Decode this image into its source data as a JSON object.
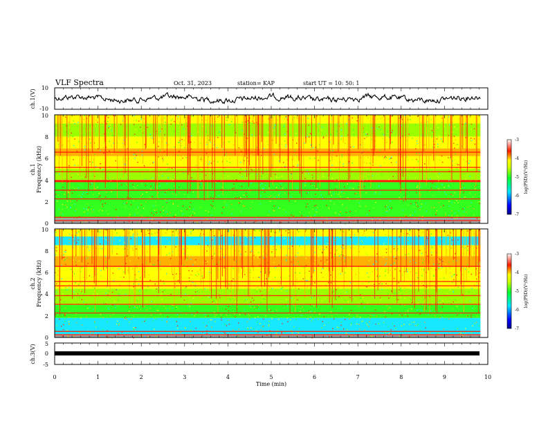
{
  "header": {
    "title": "VLF Spectra",
    "date": "Oct. 31, 2023",
    "station": "station= KAP",
    "start_ut": "start  UT  =   10: 50: 1"
  },
  "colors": {
    "spectrum_scale": [
      "#0000ff",
      "#00e5ff",
      "#00ff33",
      "#ffff00",
      "#ff1a00"
    ]
  },
  "chart_data": [
    {
      "type": "line",
      "panel": "ch1-waveform",
      "ylabel": "ch.1(V)",
      "ylim": [
        -10,
        10
      ],
      "yticks": [
        "10",
        "-10"
      ],
      "xlim": [
        0,
        10
      ],
      "x_extent": [
        0,
        9.83
      ]
    },
    {
      "type": "heatmap",
      "panel": "ch1-spectrogram",
      "ylabel_line1": "ch.1",
      "ylabel_line2": "Frequency  (kHz)",
      "ylim": [
        0,
        10
      ],
      "yticks": [
        "0",
        "2",
        "4",
        "6",
        "8",
        "10"
      ],
      "xlim": [
        0,
        10
      ],
      "x_extent": [
        0,
        9.83
      ],
      "colorbar": {
        "range": [
          -7,
          -3
        ],
        "ticks": [
          "-3",
          "-4",
          "-5",
          "-6",
          "-7"
        ],
        "label": "log(PSD)(V²/Hz)"
      }
    },
    {
      "type": "heatmap",
      "panel": "ch2-spectrogram",
      "ylabel_line1": "ch.2",
      "ylabel_line2": "Frequency  (kHz)",
      "ylim": [
        0,
        10
      ],
      "yticks": [
        "0",
        "2",
        "4",
        "6",
        "8",
        "10"
      ],
      "xlim": [
        0,
        10
      ],
      "x_extent": [
        0,
        9.83
      ],
      "colorbar": {
        "range": [
          -7,
          -3
        ],
        "ticks": [
          "-3",
          "-4",
          "-5",
          "-6",
          "-7"
        ],
        "label": "log(PSD)(V²/Hz)"
      }
    },
    {
      "type": "line",
      "panel": "ch3-waveform",
      "ylabel": "ch.3(V)",
      "ylim": [
        -5,
        5
      ],
      "yticks": [
        "5",
        "0",
        "-5"
      ],
      "xlim": [
        0,
        10
      ],
      "x_extent": [
        0,
        9.83
      ]
    }
  ],
  "x_axis": {
    "label": "Time  (min)",
    "ticks": [
      "0",
      "1",
      "2",
      "3",
      "4",
      "5",
      "6",
      "7",
      "8",
      "9",
      "10"
    ]
  }
}
